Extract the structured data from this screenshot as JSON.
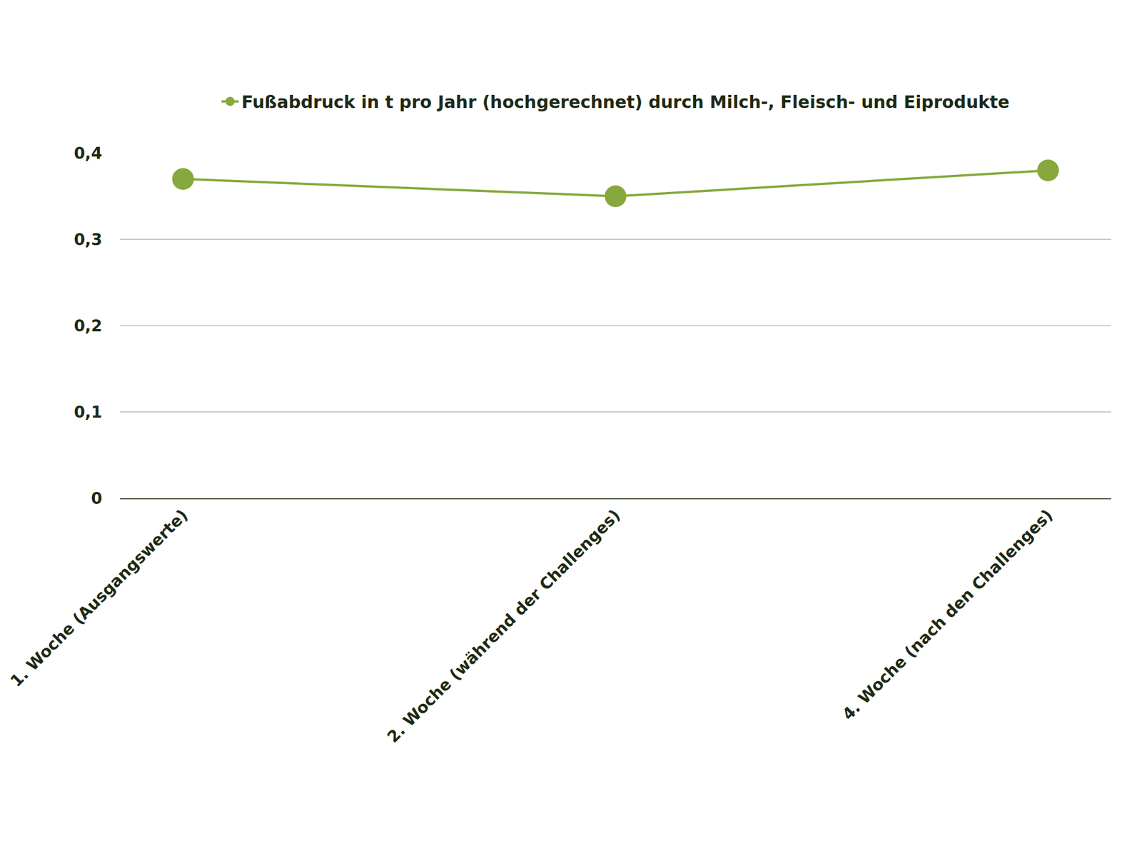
{
  "chart_data": {
    "type": "line",
    "categories": [
      "1. Woche (Ausgangswerte)",
      "2. Woche (während der Challenges)",
      "4. Woche (nach den Challenges)"
    ],
    "series": [
      {
        "name": "Fußabdruck in t pro Jahr (hochgerechnet) durch Milch-, Fleisch- und Eiprodukte",
        "color": "#86a83c",
        "values": [
          0.37,
          0.35,
          0.38
        ],
        "marker": "circle",
        "line_style": "solid"
      }
    ],
    "ylim": [
      0,
      0.4
    ],
    "yticks": [
      0,
      {
        "value": 0.1,
        "label": "0,1"
      },
      {
        "value": 0.2,
        "label": "0,2"
      },
      {
        "value": 0.3,
        "label": "0,3"
      },
      {
        "value": 0.4,
        "label": "0,4"
      }
    ],
    "grid": true,
    "legend": "top"
  }
}
